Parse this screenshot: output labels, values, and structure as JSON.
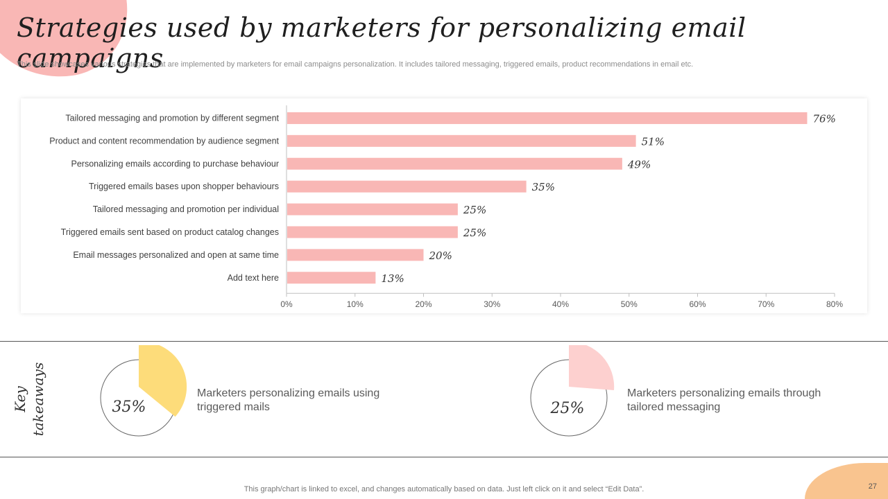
{
  "title": "Strategies used by marketers for personalizing email campaigns",
  "subtitle": "This slide showcases various strategies that are implemented by marketers for email campaigns personalization. It includes tailored messaging, triggered emails, product recommendations in email etc.",
  "colors": {
    "bar": "#f9b7b5",
    "accent_yellow": "#fddc7a",
    "accent_pink": "#fdd0cf",
    "blob_pink": "#f9b7b5",
    "blob_orange": "#f9c48f"
  },
  "chart_data": {
    "type": "bar",
    "orientation": "horizontal",
    "categories": [
      "Tailored messaging and promotion by different segment",
      "Product and content recommendation by audience segment",
      "Personalizing emails according to purchase behaviour",
      "Triggered emails bases upon shopper behaviours",
      "Tailored messaging and promotion per individual",
      "Triggered emails sent based on product catalog changes",
      "Email messages personalized and open at same time",
      "Add text here"
    ],
    "values": [
      76,
      51,
      49,
      35,
      25,
      25,
      20,
      13
    ],
    "value_labels": [
      "76%",
      "51%",
      "49%",
      "35%",
      "25%",
      "25%",
      "20%",
      "13%"
    ],
    "xlim": [
      0,
      80
    ],
    "xticks": [
      0,
      10,
      20,
      30,
      40,
      50,
      60,
      70,
      80
    ],
    "xtick_labels": [
      "0%",
      "10%",
      "20%",
      "30%",
      "40%",
      "50%",
      "60%",
      "70%",
      "80%"
    ],
    "grid": false,
    "legend": "none"
  },
  "takeaways": {
    "heading_line1": "Key",
    "heading_line2": "takeaways",
    "items": [
      {
        "value": 35,
        "label": "35%",
        "text": "Marketers personalizing emails using triggered mails",
        "color": "#fddc7a"
      },
      {
        "value": 25,
        "label": "25%",
        "text": "Marketers personalizing emails through tailored messaging",
        "color": "#fdd0cf"
      }
    ]
  },
  "footer": "This graph/chart is linked to excel,  and changes automatically based on data. Just left click on it and select “Edit Data”.",
  "page_number": "27"
}
